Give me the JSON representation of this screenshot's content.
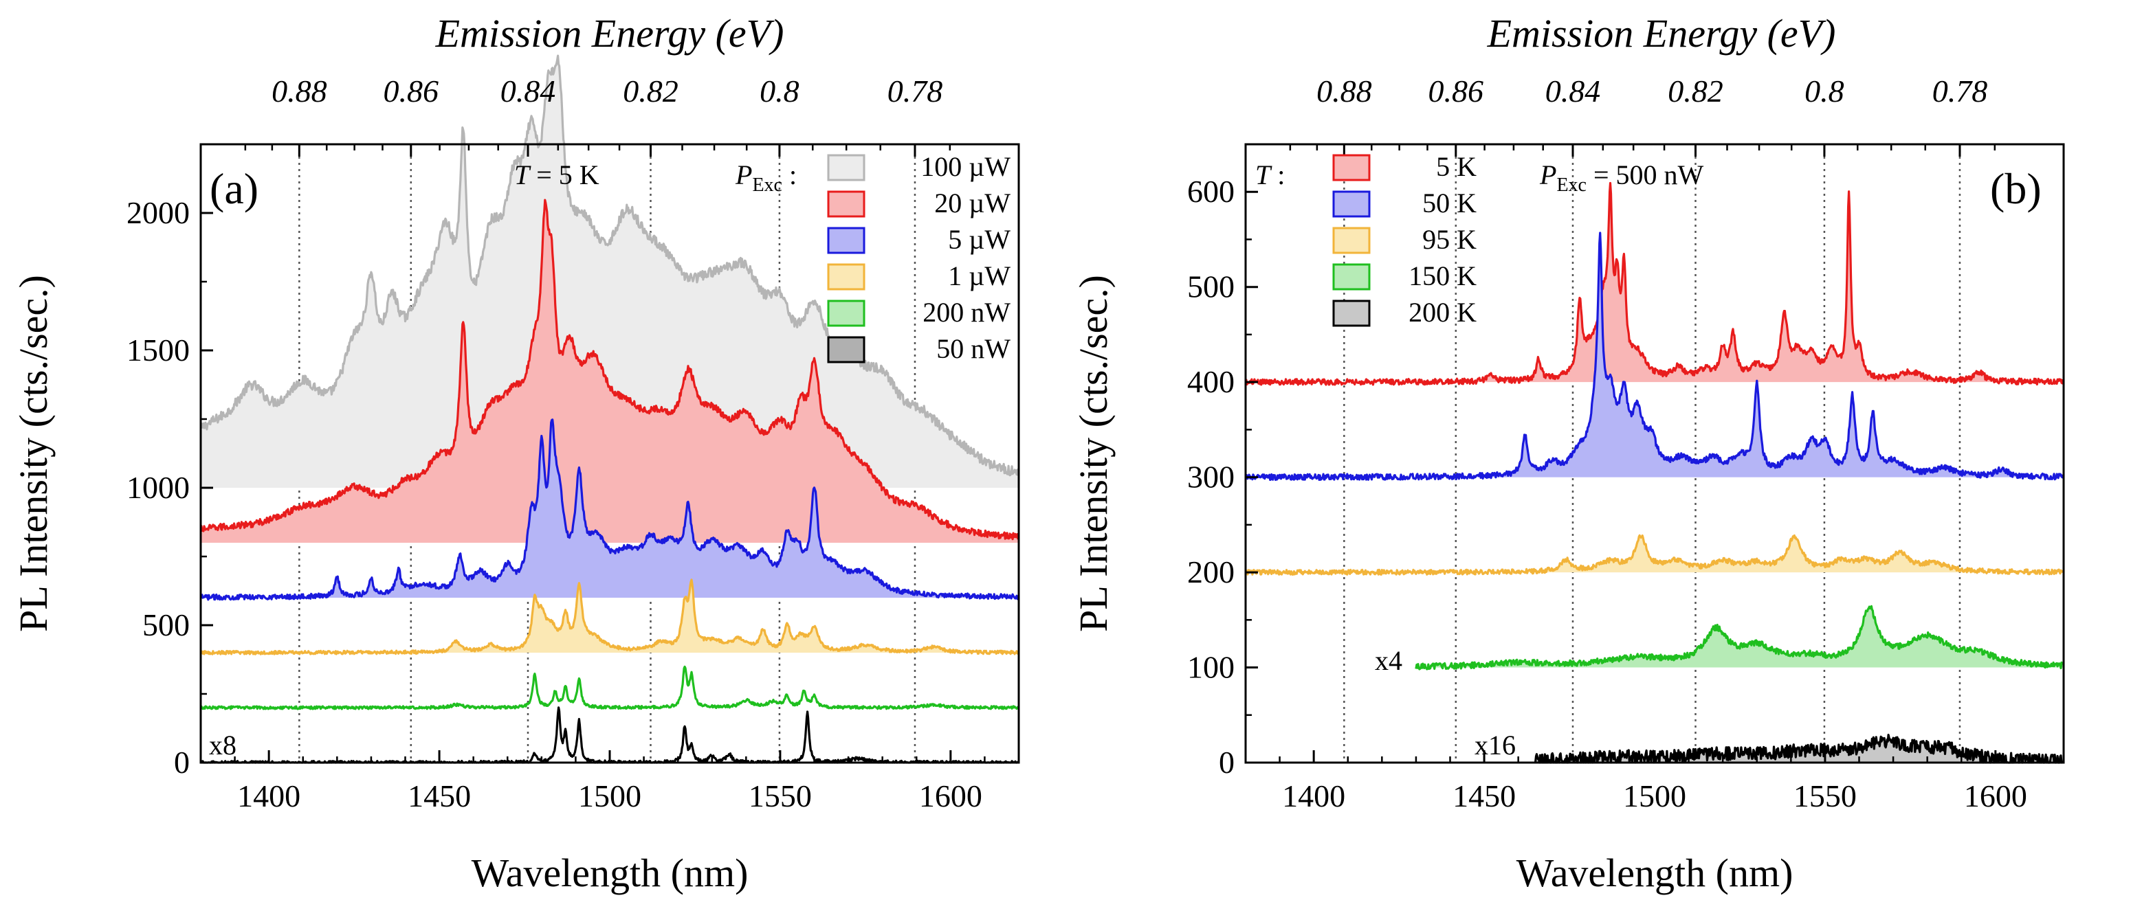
{
  "chart_data": [
    {
      "panel": "(a)",
      "type": "line",
      "xlabel": "Wavelength (nm)",
      "ylabel": "PL Intensity (cts./sec.)",
      "top_xlabel": "Emission Energy (eV)",
      "xlim": [
        1380,
        1620
      ],
      "ylim": [
        0,
        2250
      ],
      "x_ticks": [
        1400,
        1450,
        1500,
        1550,
        1600
      ],
      "y_ticks": [
        0,
        500,
        1000,
        1500,
        2000
      ],
      "top_ticks": [
        "0.88",
        "0.86",
        "0.84",
        "0.82",
        "0.8",
        "0.78"
      ],
      "energy_ticks_ev": [
        0.88,
        0.86,
        0.84,
        0.82,
        0.8,
        0.78
      ],
      "temperature_prefix": "T",
      "temperature_value": " = 5 K",
      "power_label": "P",
      "power_sub": "Exc",
      "power_suffix": " :",
      "scale_annotation": "x8",
      "series": [
        {
          "name": "100 µW",
          "color": "#b5b5b5",
          "fill": "#ececec",
          "baseline": 1000,
          "noise": 18,
          "scale": 1,
          "shift": 0,
          "peaks": [
            [
              1383,
              150,
              14
            ],
            [
              1395,
              190,
              6
            ],
            [
              1410,
              240,
              8
            ],
            [
              1425,
              300,
              5
            ],
            [
              1430,
              360,
              2
            ],
            [
              1436,
              300,
              3
            ],
            [
              1445,
              440,
              8
            ],
            [
              1452,
              480,
              4
            ],
            [
              1457,
              680,
              1.2
            ],
            [
              1465,
              540,
              5
            ],
            [
              1472,
              560,
              4
            ],
            [
              1477,
              600,
              3
            ],
            [
              1482,
              650,
              2.5
            ],
            [
              1485,
              620,
              2
            ],
            [
              1492,
              600,
              8
            ],
            [
              1505,
              480,
              7
            ],
            [
              1515,
              420,
              10
            ],
            [
              1530,
              390,
              12
            ],
            [
              1540,
              370,
              8
            ],
            [
              1550,
              280,
              5
            ],
            [
              1560,
              350,
              5
            ],
            [
              1570,
              230,
              8
            ],
            [
              1580,
              200,
              7
            ],
            [
              1592,
              130,
              8
            ],
            [
              1602,
              50,
              8
            ]
          ]
        },
        {
          "name": "20 µW",
          "color": "#e81c1c",
          "fill": "#f9b6b6",
          "baseline": 800,
          "noise": 12,
          "scale": 1,
          "shift": 0,
          "peaks": [
            [
              1385,
              30,
              20
            ],
            [
              1410,
              70,
              10
            ],
            [
              1425,
              130,
              8
            ],
            [
              1440,
              100,
              6
            ],
            [
              1450,
              180,
              6
            ],
            [
              1457,
              530,
              1.2
            ],
            [
              1465,
              300,
              6
            ],
            [
              1472,
              260,
              5
            ],
            [
              1478,
              350,
              3
            ],
            [
              1481,
              600,
              1.3
            ],
            [
              1483,
              500,
              1.5
            ],
            [
              1488,
              350,
              3
            ],
            [
              1495,
              430,
              6
            ],
            [
              1505,
              260,
              8
            ],
            [
              1515,
              220,
              7
            ],
            [
              1523,
              280,
              3
            ],
            [
              1530,
              270,
              7
            ],
            [
              1540,
              260,
              6
            ],
            [
              1550,
              240,
              5
            ],
            [
              1556,
              210,
              2
            ],
            [
              1560,
              370,
              2
            ],
            [
              1566,
              240,
              6
            ],
            [
              1575,
              150,
              7
            ],
            [
              1590,
              70,
              8
            ]
          ]
        },
        {
          "name": "5 µW",
          "color": "#1a1add",
          "fill": "#b5b5f6",
          "baseline": 600,
          "noise": 9,
          "scale": 1,
          "shift": 0,
          "peaks": [
            [
              1420,
              70,
              0.8
            ],
            [
              1430,
              60,
              0.8
            ],
            [
              1438,
              80,
              0.8
            ],
            [
              1445,
              40,
              6
            ],
            [
              1456,
              120,
              1.2
            ],
            [
              1462,
              70,
              3
            ],
            [
              1470,
              80,
              2
            ],
            [
              1477,
              230,
              1.5
            ],
            [
              1480,
              430,
              1.1
            ],
            [
              1483,
              400,
              1
            ],
            [
              1485,
              300,
              2
            ],
            [
              1491,
              340,
              1.3
            ],
            [
              1496,
              160,
              4
            ],
            [
              1505,
              110,
              5
            ],
            [
              1512,
              120,
              3
            ],
            [
              1518,
              130,
              4
            ],
            [
              1523,
              210,
              1.2
            ],
            [
              1530,
              150,
              5
            ],
            [
              1538,
              110,
              4
            ],
            [
              1545,
              100,
              3
            ],
            [
              1552,
              150,
              1.5
            ],
            [
              1555,
              120,
              2
            ],
            [
              1560,
              320,
              1.2
            ],
            [
              1565,
              90,
              5
            ],
            [
              1575,
              70,
              5
            ]
          ]
        },
        {
          "name": "1 µW",
          "color": "#f2b43a",
          "fill": "#fbe8b4",
          "baseline": 400,
          "noise": 6,
          "scale": 1,
          "shift": 0,
          "peaks": [
            [
              1455,
              40,
              1.5
            ],
            [
              1465,
              25,
              2
            ],
            [
              1478,
              150,
              1
            ],
            [
              1480,
              110,
              1.5
            ],
            [
              1483,
              70,
              2
            ],
            [
              1487,
              110,
              1
            ],
            [
              1491,
              210,
              1
            ],
            [
              1495,
              50,
              4
            ],
            [
              1515,
              30,
              3
            ],
            [
              1522,
              150,
              1
            ],
            [
              1524,
              220,
              0.9
            ],
            [
              1530,
              35,
              4
            ],
            [
              1538,
              40,
              3
            ],
            [
              1545,
              70,
              1.2
            ],
            [
              1552,
              90,
              1
            ],
            [
              1556,
              50,
              2
            ],
            [
              1560,
              80,
              1.5
            ],
            [
              1575,
              25,
              4
            ],
            [
              1595,
              20,
              3
            ]
          ]
        },
        {
          "name": "200 nW",
          "color": "#1fbf1f",
          "fill": "none",
          "baseline": 200,
          "noise": 5,
          "scale": 1,
          "shift": 0,
          "peaks": [
            [
              1455,
              10,
              2
            ],
            [
              1478,
              120,
              0.7
            ],
            [
              1484,
              55,
              0.7
            ],
            [
              1487,
              70,
              0.7
            ],
            [
              1491,
              100,
              0.7
            ],
            [
              1522,
              140,
              0.7
            ],
            [
              1524,
              110,
              0.7
            ],
            [
              1540,
              25,
              2
            ],
            [
              1548,
              20,
              2
            ],
            [
              1552,
              40,
              0.8
            ],
            [
              1557,
              55,
              0.8
            ],
            [
              1560,
              40,
              0.8
            ],
            [
              1595,
              10,
              3
            ]
          ]
        },
        {
          "name": "50 nW",
          "color": "#000000",
          "fill": "none",
          "baseline": 0,
          "noise": 6,
          "scale": 8,
          "shift": 0,
          "peaks": [
            [
              1478,
              30,
              0.6
            ],
            [
              1485,
              190,
              0.6
            ],
            [
              1487,
              100,
              0.6
            ],
            [
              1491,
              150,
              0.6
            ],
            [
              1522,
              130,
              0.6
            ],
            [
              1524,
              60,
              0.6
            ],
            [
              1530,
              25,
              1
            ],
            [
              1535,
              30,
              1
            ],
            [
              1558,
              180,
              0.6
            ],
            [
              1573,
              15,
              3
            ]
          ]
        }
      ]
    },
    {
      "panel": "(b)",
      "type": "line",
      "xlabel": "Wavelength (nm)",
      "ylabel": "PL Intensity (cts./sec.)",
      "top_xlabel": "Emission Energy (eV)",
      "xlim": [
        1380,
        1620
      ],
      "ylim": [
        0,
        650
      ],
      "x_ticks": [
        1400,
        1450,
        1500,
        1550,
        1600
      ],
      "y_ticks": [
        0,
        100,
        200,
        300,
        400,
        500,
        600
      ],
      "top_ticks": [
        "0.88",
        "0.86",
        "0.84",
        "0.82",
        "0.8",
        "0.78"
      ],
      "energy_ticks_ev": [
        0.88,
        0.86,
        0.84,
        0.82,
        0.8,
        0.78
      ],
      "temperature_prefix": "T",
      "temperature_suffix": " :",
      "power_label": "P",
      "power_sub": "Exc",
      "power_value": " = 500 nW",
      "annotations": [
        "x4",
        "x16"
      ],
      "series": [
        {
          "name": "5 K",
          "color": "#e81c1c",
          "fill": "#f9b6b6",
          "baseline": 400,
          "noise": 3,
          "scale": 1,
          "shift": 0,
          "x_start": 1380,
          "peaks": [
            [
              1452,
              8,
              1
            ],
            [
              1466,
              22,
              0.8
            ],
            [
              1478,
              68,
              0.8
            ],
            [
              1481,
              25,
              3
            ],
            [
              1485,
              70,
              2
            ],
            [
              1487,
              150,
              0.7
            ],
            [
              1489,
              80,
              0.8
            ],
            [
              1491,
              100,
              0.7
            ],
            [
              1495,
              25,
              3
            ],
            [
              1507,
              12,
              2
            ],
            [
              1515,
              10,
              3
            ],
            [
              1520,
              30,
              1
            ],
            [
              1523,
              45,
              1
            ],
            [
              1530,
              15,
              3
            ],
            [
              1538,
              65,
              1.2
            ],
            [
              1542,
              25,
              2
            ],
            [
              1546,
              25,
              2
            ],
            [
              1552,
              30,
              2
            ],
            [
              1557,
              190,
              0.6
            ],
            [
              1560,
              30,
              1.2
            ],
            [
              1575,
              10,
              4
            ],
            [
              1595,
              10,
              2
            ]
          ]
        },
        {
          "name": "50 K",
          "color": "#1a1add",
          "fill": "#b5b5f6",
          "baseline": 300,
          "noise": 3,
          "scale": 1,
          "shift": 0,
          "x_start": 1380,
          "peaks": [
            [
              1462,
              40,
              1
            ],
            [
              1470,
              12,
              2
            ],
            [
              1478,
              20,
              3
            ],
            [
              1483,
              60,
              2
            ],
            [
              1484,
              175,
              0.7
            ],
            [
              1487,
              70,
              2
            ],
            [
              1491,
              65,
              1.5
            ],
            [
              1495,
              55,
              2
            ],
            [
              1499,
              30,
              2
            ],
            [
              1508,
              15,
              4
            ],
            [
              1517,
              15,
              3
            ],
            [
              1525,
              18,
              3
            ],
            [
              1530,
              90,
              1
            ],
            [
              1540,
              15,
              3
            ],
            [
              1546,
              30,
              2
            ],
            [
              1550,
              30,
              2
            ],
            [
              1558,
              80,
              1
            ],
            [
              1564,
              60,
              1
            ],
            [
              1570,
              15,
              4
            ],
            [
              1585,
              8,
              4
            ],
            [
              1602,
              8,
              2
            ]
          ]
        },
        {
          "name": "95 K",
          "color": "#f2b43a",
          "fill": "#fbe8b4",
          "baseline": 200,
          "noise": 2.5,
          "scale": 1,
          "shift": 0,
          "x_start": 1380,
          "peaks": [
            [
              1474,
              12,
              2
            ],
            [
              1487,
              10,
              4
            ],
            [
              1496,
              35,
              2
            ],
            [
              1506,
              10,
              4
            ],
            [
              1520,
              10,
              4
            ],
            [
              1530,
              8,
              4
            ],
            [
              1541,
              35,
              2.5
            ],
            [
              1555,
              10,
              3
            ],
            [
              1562,
              10,
              4
            ],
            [
              1572,
              18,
              3
            ],
            [
              1582,
              8,
              5
            ]
          ]
        },
        {
          "name": "150 K",
          "color": "#1fbf1f",
          "fill": "#b6ebb6",
          "baseline": 100,
          "noise": 3,
          "scale": 4,
          "shift": 0,
          "x_start": 1430,
          "peaks": [
            [
              1460,
              4,
              10
            ],
            [
              1495,
              9,
              12
            ],
            [
              1518,
              35,
              4
            ],
            [
              1530,
              18,
              6
            ],
            [
              1545,
              8,
              8
            ],
            [
              1563,
              55,
              3
            ],
            [
              1580,
              30,
              8
            ],
            [
              1595,
              10,
              6
            ]
          ]
        },
        {
          "name": "200 K",
          "color": "#000000",
          "fill": "#c8c8c8",
          "baseline": 0,
          "noise": 7,
          "scale": 16,
          "shift": 0,
          "x_start": 1465,
          "peaks": [
            [
              1490,
              4,
              20
            ],
            [
              1520,
              6,
              15
            ],
            [
              1545,
              8,
              12
            ],
            [
              1568,
              18,
              10
            ],
            [
              1585,
              10,
              8
            ]
          ]
        }
      ]
    }
  ]
}
